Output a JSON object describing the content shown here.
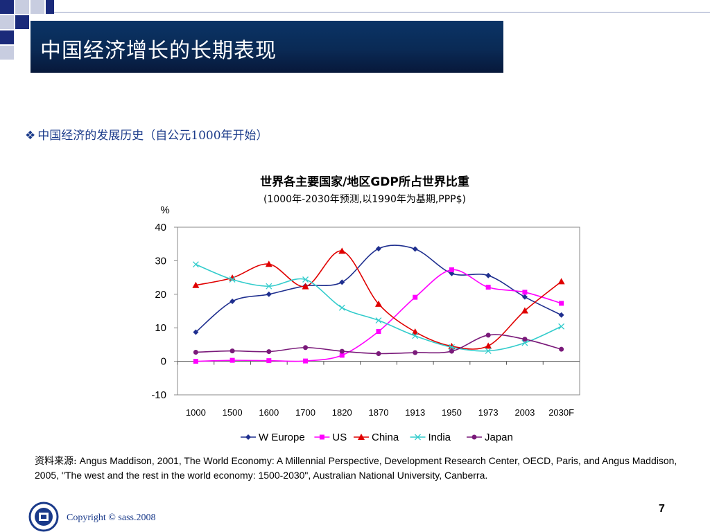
{
  "slide": {
    "title": "中国经济增长的长期表现",
    "bullet": "中国经济的发展历史（自公元1000年开始）",
    "source_label": "资料来源:",
    "source_text": " Angus Maddison, 2001, The World Economy: A Millennial Perspective, Development Research Center, OECD, Paris, and Angus Maddison, 2005, \"The west and the rest in the world economy: 1500-2030\", Australian National University, Canberra.",
    "page_number": "7",
    "copyright": "Copyright © sass.2008"
  },
  "colors": {
    "title_bar": "#0a2a55",
    "w_europe": "#1f2f8f",
    "us": "#ff00ff",
    "china": "#e00000",
    "india": "#33cccc",
    "japan": "#7a1a7a"
  },
  "chart_data": {
    "type": "line",
    "title": "世界各主要国家/地区GDP所占世界比重",
    "subtitle": "(1000年-2030年预测,以1990年为基期,PPP$)",
    "ylabel": "%",
    "ylim": [
      -10,
      40
    ],
    "yticks": [
      "40",
      "30",
      "20",
      "10",
      "0",
      "-10"
    ],
    "categories": [
      "1000",
      "1500",
      "1600",
      "1700",
      "1820",
      "1870",
      "1913",
      "1950",
      "1973",
      "2003",
      "2030F"
    ],
    "legend_position": "bottom",
    "series": [
      {
        "name": "W Europe",
        "values": [
          8.7,
          17.9,
          20.0,
          22.5,
          23.6,
          33.6,
          33.5,
          26.2,
          25.6,
          19.2,
          13.8
        ]
      },
      {
        "name": "US",
        "values": [
          0.0,
          0.3,
          0.2,
          0.1,
          1.8,
          8.9,
          19.1,
          27.3,
          22.1,
          20.6,
          17.3
        ]
      },
      {
        "name": "China",
        "values": [
          22.7,
          24.9,
          29.0,
          22.3,
          32.9,
          17.1,
          8.8,
          4.5,
          4.6,
          15.1,
          23.8
        ]
      },
      {
        "name": "India",
        "values": [
          28.9,
          24.4,
          22.4,
          24.4,
          16.0,
          12.2,
          7.6,
          4.2,
          3.1,
          5.5,
          10.4
        ]
      },
      {
        "name": "Japan",
        "values": [
          2.7,
          3.1,
          2.9,
          4.1,
          3.0,
          2.3,
          2.6,
          3.0,
          7.8,
          6.6,
          3.6
        ]
      }
    ]
  }
}
